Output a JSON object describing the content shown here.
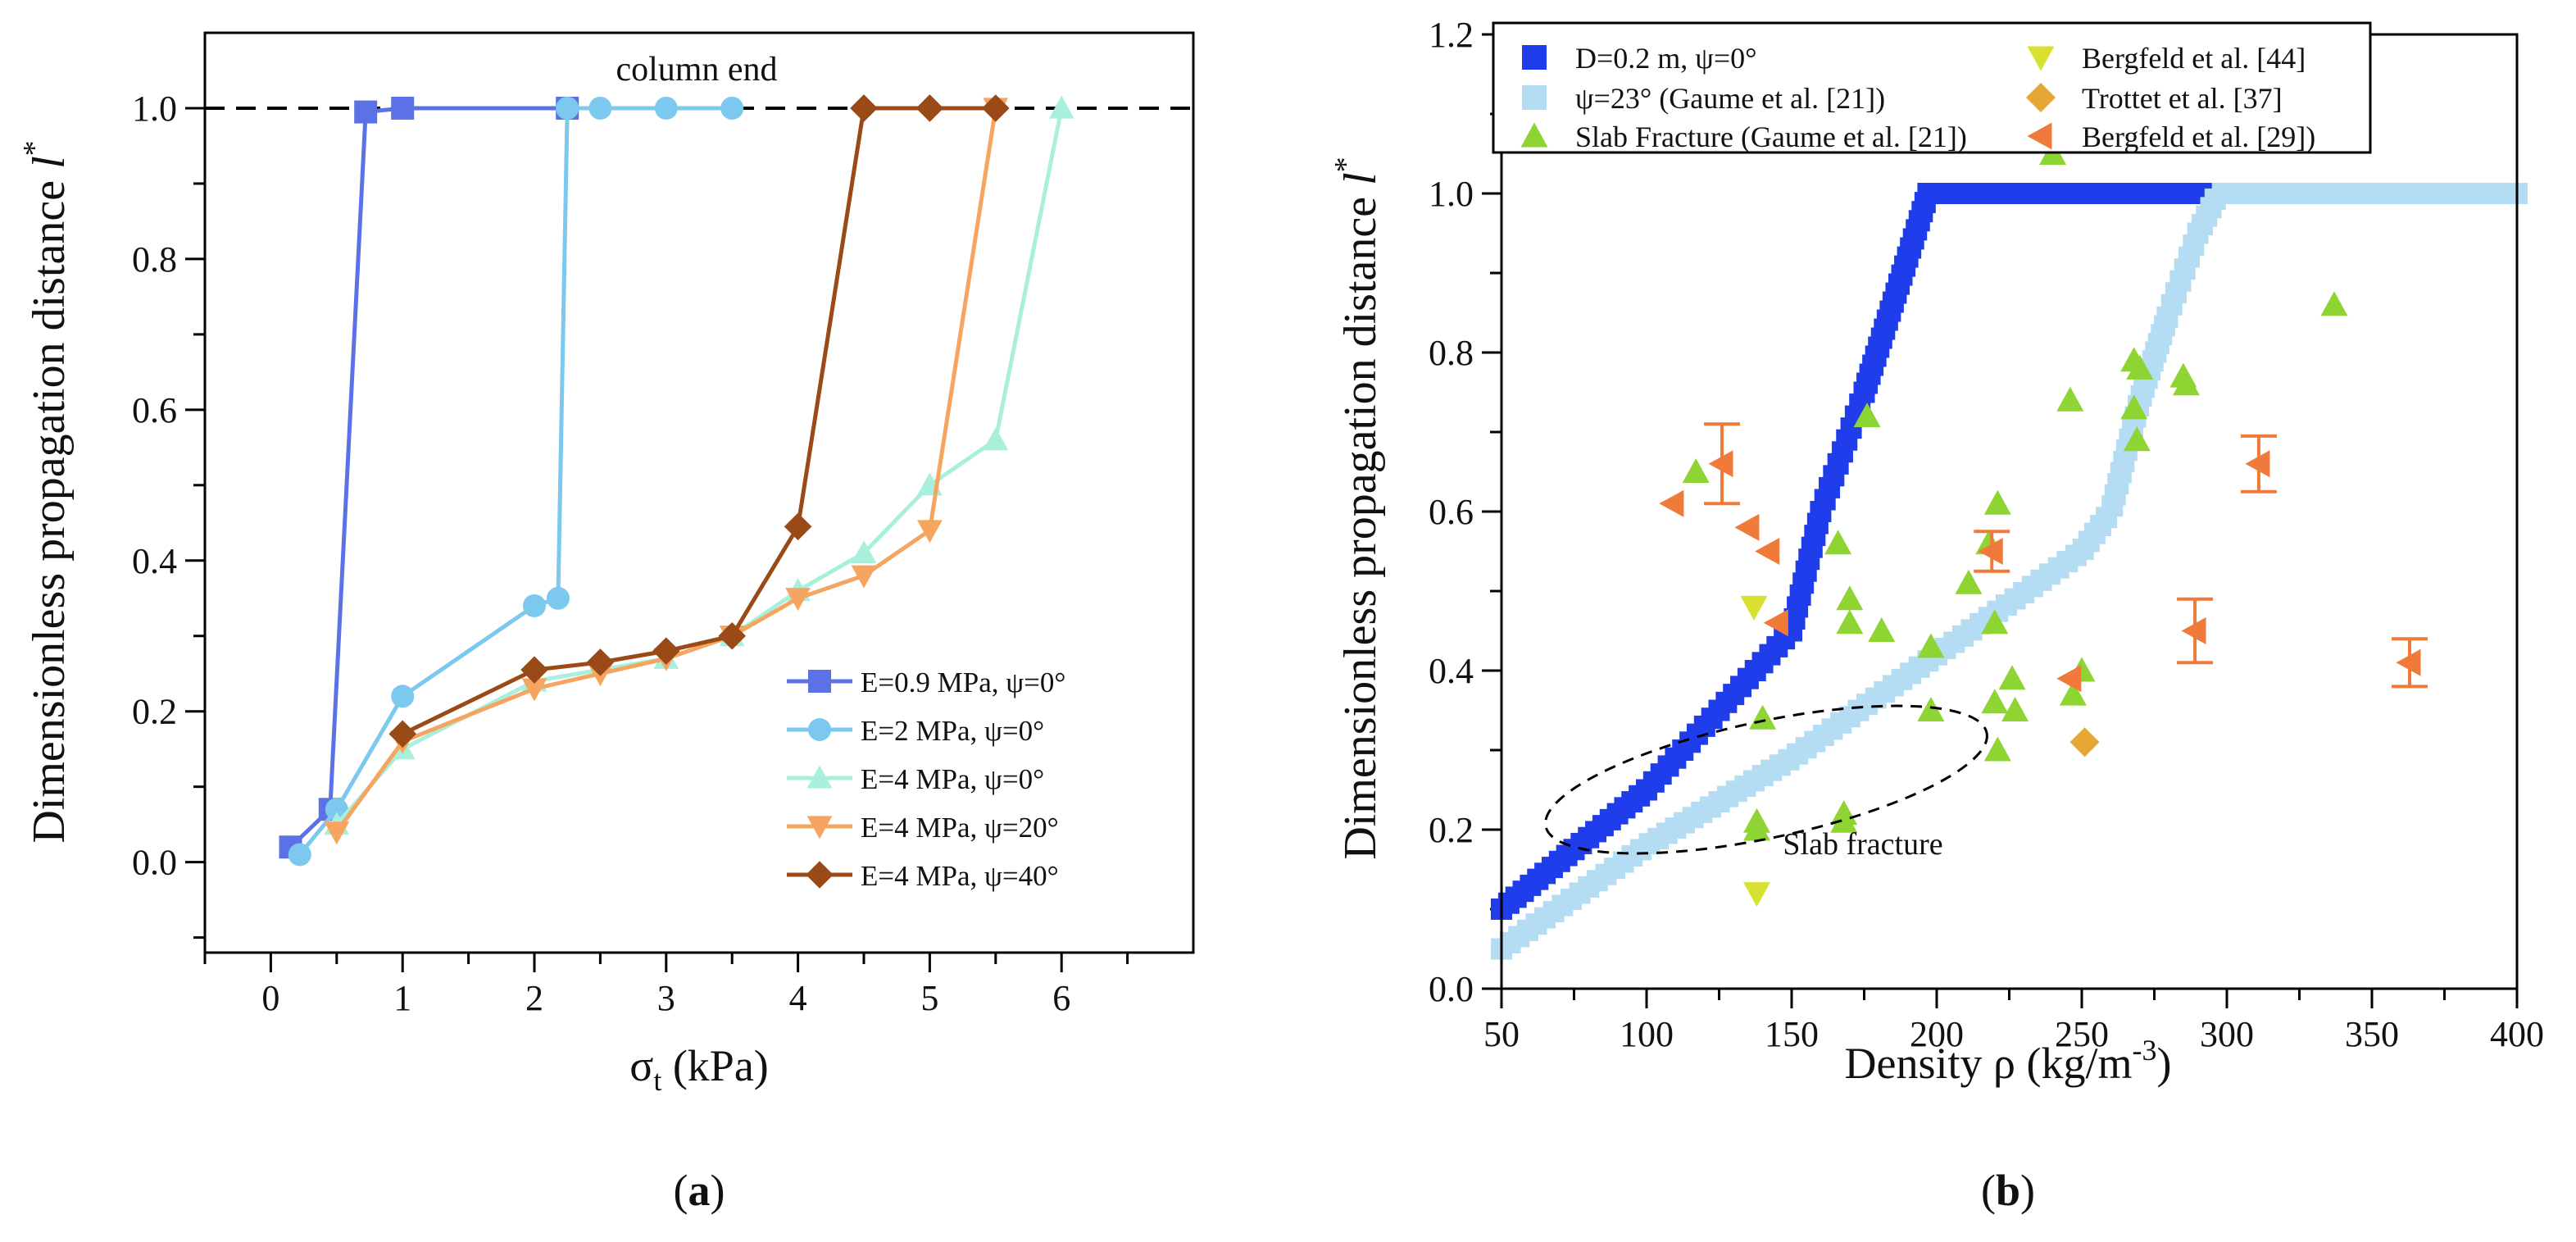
{
  "colors": {
    "e09": "#5B72E6",
    "e2": "#7CC8EE",
    "e4": "#A8F0DC",
    "e4p20": "#F5A55F",
    "e4p40": "#9A4A16",
    "d02": "#1F3DEA",
    "psi23": "#B4DCF2",
    "slab": "#8ED432",
    "bergfeld44": "#D8E030",
    "trottet": "#E6A834",
    "bergfeld29": "#F07A3A"
  },
  "chart_data": [
    {
      "panel_label": "(a)",
      "label_text": "a",
      "type": "line",
      "title": "",
      "xlabel_sym": "σ",
      "xlabel_sub": "t",
      "xlabel_unit": " (kPa)",
      "ylabel": "Dimensionless propagation distance",
      "ylabel_sym": "l",
      "ylabel_sup": "*",
      "xlim": [
        -0.5,
        7.0
      ],
      "ylim": [
        -0.12,
        1.1
      ],
      "xticks": [
        "0",
        "1",
        "2",
        "3",
        "4",
        "5",
        "6"
      ],
      "xtick_values": [
        0,
        1,
        2,
        3,
        4,
        5,
        6
      ],
      "yticks": [
        "0.0",
        "0.2",
        "0.4",
        "0.6",
        "0.8",
        "1.0"
      ],
      "ytick_values": [
        0,
        0.2,
        0.4,
        0.6,
        0.8,
        1.0
      ],
      "reference_line": {
        "y": 1.0,
        "label": "column end"
      },
      "legend_position": "bottom-right",
      "series": [
        {
          "name": "E=0.9 MPa, ψ=0°",
          "marker": "square",
          "color_key": "e09",
          "x": [
            0.15,
            0.45,
            0.72,
            1.0,
            2.25
          ],
          "y": [
            0.02,
            0.07,
            0.995,
            1.0,
            1.0
          ]
        },
        {
          "name": "E=2 MPa, ψ=0°",
          "marker": "circle",
          "color_key": "e2",
          "x": [
            0.22,
            0.5,
            1.0,
            2.0,
            2.18,
            2.25,
            2.5,
            3.0,
            3.5
          ],
          "y": [
            0.01,
            0.07,
            0.22,
            0.34,
            0.35,
            1.0,
            1.0,
            1.0,
            1.0
          ]
        },
        {
          "name": "E=4 MPa, ψ=0°",
          "marker": "triangle-up",
          "color_key": "e4",
          "x": [
            0.5,
            1.0,
            2.0,
            3.0,
            3.5,
            4.0,
            4.5,
            5.0,
            5.5,
            6.0
          ],
          "y": [
            0.05,
            0.15,
            0.24,
            0.27,
            0.3,
            0.36,
            0.41,
            0.5,
            0.56,
            1.0
          ]
        },
        {
          "name": "E=4 MPa, ψ=20°",
          "marker": "triangle-down",
          "color_key": "e4p20",
          "x": [
            0.5,
            1.0,
            2.0,
            2.5,
            3.0,
            3.5,
            4.0,
            4.5,
            5.0,
            5.5
          ],
          "y": [
            0.04,
            0.16,
            0.23,
            0.25,
            0.27,
            0.3,
            0.35,
            0.38,
            0.44,
            1.0
          ]
        },
        {
          "name": "E=4 MPa, ψ=40°",
          "marker": "diamond",
          "color_key": "e4p40",
          "x": [
            1.0,
            2.0,
            2.5,
            3.0,
            3.5,
            4.0,
            4.5,
            5.0,
            5.5
          ],
          "y": [
            0.17,
            0.255,
            0.265,
            0.28,
            0.3,
            0.445,
            1.0,
            1.0,
            1.0
          ]
        }
      ]
    },
    {
      "panel_label": "(b)",
      "label_text": "b",
      "type": "scatter",
      "title": "",
      "xlabel": "Density ρ (kg/m",
      "xlabel_sup": "-3",
      "xlabel_end": ")",
      "ylabel": "Dimensionless propagation distance",
      "ylabel_sym": "l",
      "ylabel_sup": "*",
      "xlim": [
        50,
        400
      ],
      "ylim": [
        0,
        1.2
      ],
      "xticks": [
        "50",
        "100",
        "150",
        "200",
        "250",
        "300",
        "350",
        "400"
      ],
      "xtick_values": [
        50,
        100,
        150,
        200,
        250,
        300,
        350,
        400
      ],
      "yticks": [
        "0.0",
        "0.2",
        "0.4",
        "0.6",
        "0.8",
        "1.0",
        "1.2"
      ],
      "ytick_values": [
        0,
        0.2,
        0.4,
        0.6,
        0.8,
        1.0,
        1.2
      ],
      "legend_position": "top",
      "annotation": {
        "text": "Slab fracture",
        "ellipse_center": [
          200,
          0.29
        ]
      },
      "series": [
        {
          "name": "D=0.2 m, ψ=0°",
          "marker": "square-curve",
          "color_key": "d02",
          "x": [
            50,
            100,
            140,
            150,
            160,
            175,
            190,
            197,
            200,
            300,
            400
          ],
          "y": [
            0.1,
            0.25,
            0.41,
            0.45,
            0.6,
            0.75,
            0.92,
            1.0,
            1.0,
            1.0,
            1.0
          ]
        },
        {
          "name": "ψ=23° (Gaume et al. [21])",
          "marker": "square-curve",
          "color_key": "psi23",
          "x": [
            50,
            100,
            150,
            200,
            250,
            260,
            270,
            280,
            290,
            297,
            400
          ],
          "y": [
            0.05,
            0.18,
            0.29,
            0.42,
            0.55,
            0.6,
            0.74,
            0.85,
            0.95,
            1.0,
            1.0
          ]
        },
        {
          "name": "Slab Fracture (Gaume et al. [21])",
          "marker": "triangle-up",
          "color_key": "slab",
          "points": [
            [
              117,
              0.65
            ],
            [
              138,
              0.21
            ],
            [
              138,
              0.2
            ],
            [
              140,
              0.34
            ],
            [
              166,
              0.56
            ],
            [
              168,
              0.22
            ],
            [
              168,
              0.21
            ],
            [
              170,
              0.49
            ],
            [
              170,
              0.46
            ],
            [
              176,
              0.72
            ],
            [
              181,
              0.45
            ],
            [
              198,
              0.35
            ],
            [
              198,
              0.43
            ],
            [
              211,
              0.51
            ],
            [
              218,
              0.56
            ],
            [
              220,
              0.46
            ],
            [
              220,
              0.36
            ],
            [
              221,
              0.3
            ],
            [
              221,
              0.61
            ],
            [
              226,
              0.39
            ],
            [
              227,
              0.35
            ],
            [
              240,
              1.05
            ],
            [
              246,
              0.74
            ],
            [
              247,
              0.37
            ],
            [
              250,
              0.4
            ],
            [
              268,
              0.79
            ],
            [
              268,
              0.73
            ],
            [
              269,
              0.69
            ],
            [
              270,
              0.78
            ],
            [
              285,
              0.77
            ],
            [
              286,
              0.76
            ],
            [
              337,
              0.86
            ]
          ]
        },
        {
          "name": "Bergfeld et al. [44]",
          "marker": "triangle-down",
          "color_key": "bergfeld44",
          "points": [
            [
              137,
              0.48
            ],
            [
              138,
              0.12
            ]
          ]
        },
        {
          "name": "Trottet et al. [37]",
          "marker": "diamond",
          "color_key": "trottet",
          "points": [
            [
              251,
              0.31
            ]
          ]
        },
        {
          "name": "Bergfeld et al. [29])",
          "marker": "triangle-left",
          "color_key": "bergfeld29",
          "points": [
            [
              109,
              0.61,
              0
            ],
            [
              126,
              0.66,
              0.05
            ],
            [
              135,
              0.58,
              0
            ],
            [
              142,
              0.55,
              0
            ],
            [
              145,
              0.46,
              0
            ],
            [
              219,
              0.55,
              0.025
            ],
            [
              246,
              0.39,
              0
            ],
            [
              289,
              0.45,
              0.04
            ],
            [
              311,
              0.66,
              0.035
            ],
            [
              363,
              0.41,
              0.03
            ]
          ]
        }
      ]
    }
  ]
}
